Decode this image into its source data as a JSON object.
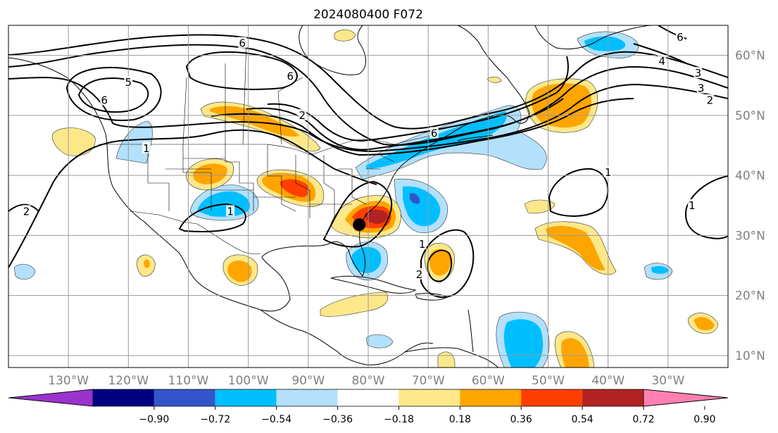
{
  "title": "2024080400 F072",
  "map": {
    "lon_range": [
      -140,
      -20
    ],
    "lat_range": [
      8,
      65
    ],
    "projection": "equirectangular",
    "grid": true,
    "lon_ticks": [
      {
        "value": -130,
        "label": "130°W"
      },
      {
        "value": -120,
        "label": "120°W"
      },
      {
        "value": -110,
        "label": "110°W"
      },
      {
        "value": -100,
        "label": "100°W"
      },
      {
        "value": -90,
        "label": "90°W"
      },
      {
        "value": -80,
        "label": "80°W"
      },
      {
        "value": -70,
        "label": "70°W"
      },
      {
        "value": -60,
        "label": "60°W"
      },
      {
        "value": -50,
        "label": "50°W"
      },
      {
        "value": -40,
        "label": "40°W"
      },
      {
        "value": -30,
        "label": "30°W"
      }
    ],
    "lat_ticks": [
      {
        "value": 60,
        "label": "60°N"
      },
      {
        "value": 50,
        "label": "50°N"
      },
      {
        "value": 40,
        "label": "40°N"
      },
      {
        "value": 30,
        "label": "30°N"
      },
      {
        "value": 20,
        "label": "20°N"
      },
      {
        "value": 10,
        "label": "10°N"
      }
    ],
    "storm_marker": {
      "lon": -81.5,
      "lat": 31.8
    }
  },
  "contour_labels": [
    {
      "text": "5",
      "lon": -120,
      "lat": 55.5
    },
    {
      "text": "6",
      "lon": -124,
      "lat": 52.5
    },
    {
      "text": "6",
      "lon": -93,
      "lat": 56.5
    },
    {
      "text": "6",
      "lon": -101,
      "lat": 62
    },
    {
      "text": "2",
      "lon": -91,
      "lat": 50
    },
    {
      "text": "6",
      "lon": -69,
      "lat": 47
    },
    {
      "text": "1",
      "lon": -117,
      "lat": 44.5
    },
    {
      "text": "1",
      "lon": -103,
      "lat": 34
    },
    {
      "text": "2",
      "lon": -137,
      "lat": 34
    },
    {
      "text": "1",
      "lon": -71,
      "lat": 28.5
    },
    {
      "text": "2",
      "lon": -71.5,
      "lat": 23.5
    },
    {
      "text": "1",
      "lon": -40,
      "lat": 40.5
    },
    {
      "text": "1",
      "lon": -26,
      "lat": 35
    },
    {
      "text": "6",
      "lon": -28,
      "lat": 63
    },
    {
      "text": "4",
      "lon": -31,
      "lat": 59
    },
    {
      "text": "3",
      "lon": -24.5,
      "lat": 54.5
    },
    {
      "text": "2",
      "lon": -23,
      "lat": 52.5
    },
    {
      "text": "3",
      "lon": -25,
      "lat": 57
    }
  ],
  "colorbar": {
    "colors": [
      "#9933cc",
      "#000080",
      "#3355cc",
      "#00bfff",
      "#b3e0fb",
      "#ffffff",
      "#fce88a",
      "#ffa500",
      "#ff3f00",
      "#b22222",
      "#ff80b0"
    ],
    "tick_labels": [
      "−0.90",
      "−0.72",
      "−0.54",
      "−0.36",
      "−0.18",
      "0.18",
      "0.36",
      "0.54",
      "0.72",
      "0.90"
    ]
  }
}
